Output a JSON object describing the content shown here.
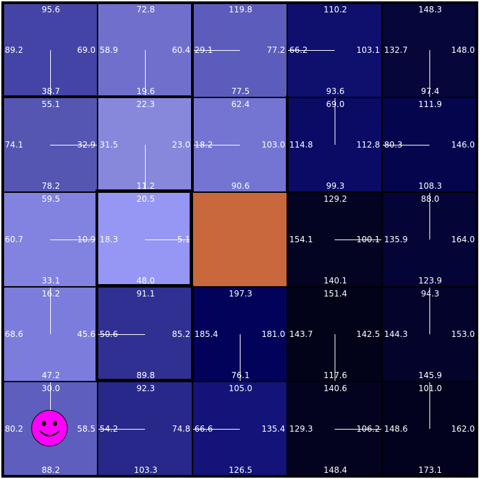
{
  "grid": {
    "rows": 5,
    "cols": 5,
    "cells": [
      [
        {
          "color": "#4444a6",
          "top": "95.6",
          "right": "69.0",
          "bottom": "38.7",
          "left": "89.2",
          "arrow": "down"
        },
        {
          "color": "#7070cc",
          "top": "72.8",
          "right": "60.4",
          "bottom": "19.6",
          "left": "58.9",
          "arrow": "down"
        },
        {
          "color": "#5c5cbc",
          "top": "119.8",
          "right": "77.2",
          "bottom": "77.5",
          "left": "29.1",
          "arrow": "left"
        },
        {
          "color": "#0f0f6e",
          "top": "110.2",
          "right": "103.1",
          "bottom": "93.6",
          "left": "66.2",
          "arrow": "left"
        },
        {
          "color": "#06063a",
          "top": "148.3",
          "right": "148.0",
          "bottom": "97.4",
          "left": "132.7",
          "arrow": "down"
        }
      ],
      [
        {
          "color": "#5555b2",
          "top": "55.1",
          "right": "32.9",
          "bottom": "78.2",
          "left": "74.1",
          "arrow": "right"
        },
        {
          "color": "#8787dc",
          "top": "22.3",
          "right": "23.0",
          "bottom": "11.2",
          "left": "31.5",
          "arrow": "down"
        },
        {
          "color": "#7474d2",
          "top": "62.4",
          "right": "103.0",
          "bottom": "90.6",
          "left": "18.2",
          "arrow": "left"
        },
        {
          "color": "#0b0b66",
          "top": "69.0",
          "right": "112.8",
          "bottom": "99.3",
          "left": "114.8",
          "arrow": "up"
        },
        {
          "color": "#05054e",
          "top": "111.9",
          "right": "146.0",
          "bottom": "108.3",
          "left": "80.3",
          "arrow": "left"
        }
      ],
      [
        {
          "color": "#8282e0",
          "top": "59.5",
          "right": "10.9",
          "bottom": "33.1",
          "left": "60.7",
          "arrow": "right"
        },
        {
          "color": "#9696f4",
          "top": "20.5",
          "right": "5.1",
          "bottom": "48.0",
          "left": "18.3",
          "arrow": "right"
        },
        {
          "color": "#c8683c",
          "top": "",
          "right": "",
          "bottom": "",
          "left": "",
          "arrow": "none"
        },
        {
          "color": "#030322",
          "top": "129.2",
          "right": "100.1",
          "bottom": "140.1",
          "left": "154.1",
          "arrow": "right"
        },
        {
          "color": "#040436",
          "top": "88.0",
          "right": "164.0",
          "bottom": "123.9",
          "left": "135.9",
          "arrow": "up"
        }
      ],
      [
        {
          "color": "#7c7cdc",
          "top": "16.2",
          "right": "45.6",
          "bottom": "47.2",
          "left": "68.6",
          "arrow": "up"
        },
        {
          "color": "#303092",
          "top": "91.1",
          "right": "85.2",
          "bottom": "89.8",
          "left": "50.6",
          "arrow": "left"
        },
        {
          "color": "#02025a",
          "top": "197.3",
          "right": "181.0",
          "bottom": "76.1",
          "left": "185.4",
          "arrow": "down"
        },
        {
          "color": "#020218",
          "top": "151.4",
          "right": "142.5",
          "bottom": "117.6",
          "left": "143.7",
          "arrow": "down"
        },
        {
          "color": "#03032c",
          "top": "94.3",
          "right": "153.0",
          "bottom": "145.9",
          "left": "144.3",
          "arrow": "up"
        }
      ],
      [
        {
          "color": "#5e5ebe",
          "top": "30.0",
          "right": "58.5",
          "bottom": "88.2",
          "left": "80.2",
          "arrow": "up"
        },
        {
          "color": "#28288a",
          "top": "92.3",
          "right": "74.8",
          "bottom": "103.3",
          "left": "54.2",
          "arrow": "left"
        },
        {
          "color": "#13137a",
          "top": "105.0",
          "right": "135.4",
          "bottom": "126.5",
          "left": "66.6",
          "arrow": "left"
        },
        {
          "color": "#030320",
          "top": "140.6",
          "right": "106.2",
          "bottom": "148.4",
          "left": "129.3",
          "arrow": "right"
        },
        {
          "color": "#02021e",
          "top": "101.0",
          "right": "162.0",
          "bottom": "173.1",
          "left": "148.6",
          "arrow": "up"
        }
      ]
    ]
  },
  "agent": {
    "row": 4,
    "col": 0,
    "color": "#ff00ff",
    "icon": "smiley-face-icon"
  },
  "goal": {
    "row": 2,
    "col": 2,
    "color": "#c8683c"
  }
}
